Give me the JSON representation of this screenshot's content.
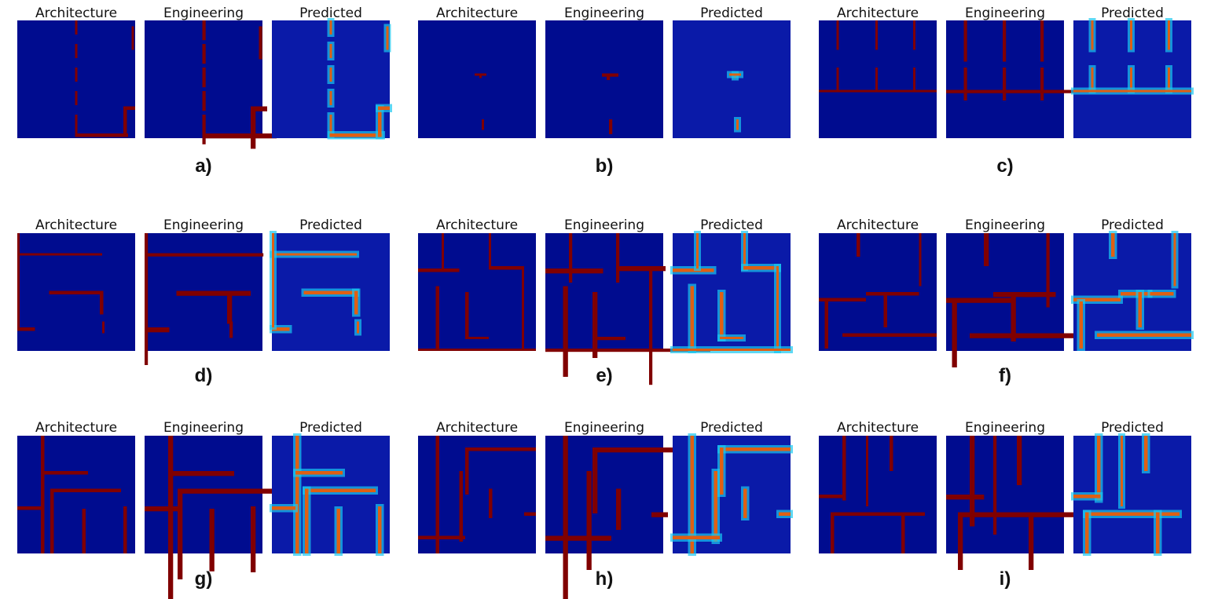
{
  "figure": {
    "groups": [
      {
        "label": "a)",
        "titles": [
          "Architecture",
          "Engineering",
          "Predicted"
        ]
      },
      {
        "label": "b)",
        "titles": [
          "Architecture",
          "Engineering",
          "Predicted"
        ]
      },
      {
        "label": "c)",
        "titles": [
          "Architecture",
          "Engineering",
          "Predicted"
        ]
      },
      {
        "label": "d)",
        "titles": [
          "Architecture",
          "Engineering",
          "Predicted"
        ]
      },
      {
        "label": "e)",
        "titles": [
          "Architecture",
          "Engineering",
          "Predicted"
        ]
      },
      {
        "label": "f)",
        "titles": [
          "Architecture",
          "Engineering",
          "Predicted"
        ]
      },
      {
        "label": "g)",
        "titles": [
          "Architecture",
          "Engineering",
          "Predicted"
        ]
      },
      {
        "label": "h)",
        "titles": [
          "Architecture",
          "Engineering",
          "Predicted"
        ]
      },
      {
        "label": "i)",
        "titles": [
          "Architecture",
          "Engineering",
          "Predicted"
        ]
      }
    ]
  }
}
